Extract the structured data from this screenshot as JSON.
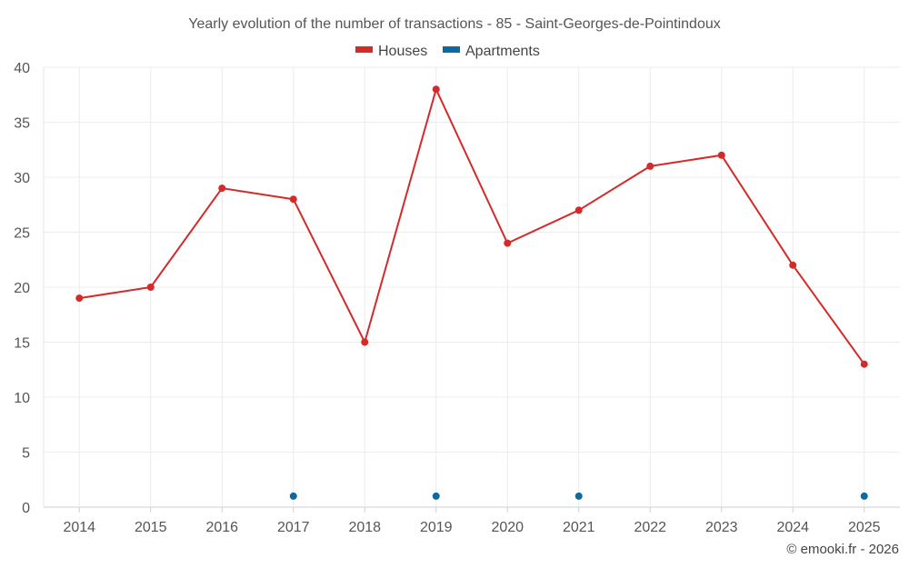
{
  "chart_data": {
    "type": "line",
    "title": "Yearly evolution of the number of transactions - 85 - Saint-Georges-de-Pointindoux",
    "categories": [
      "2014",
      "2015",
      "2016",
      "2017",
      "2018",
      "2019",
      "2020",
      "2021",
      "2022",
      "2023",
      "2024",
      "2025"
    ],
    "series": [
      {
        "name": "Houses",
        "color": "#d42a2a",
        "values": [
          19,
          20,
          29,
          28,
          15,
          38,
          24,
          27,
          31,
          32,
          22,
          13
        ]
      },
      {
        "name": "Apartments",
        "color": "#0b6aa2",
        "values": [
          null,
          null,
          null,
          1,
          null,
          1,
          null,
          1,
          null,
          null,
          null,
          1
        ]
      }
    ],
    "ylim": [
      0,
      40
    ],
    "yticks": [
      0,
      5,
      10,
      15,
      20,
      25,
      30,
      35,
      40
    ],
    "xlabel": "",
    "ylabel": "",
    "grid": true,
    "legend_position": "top-center"
  },
  "credit": "© emooki.fr - 2026"
}
